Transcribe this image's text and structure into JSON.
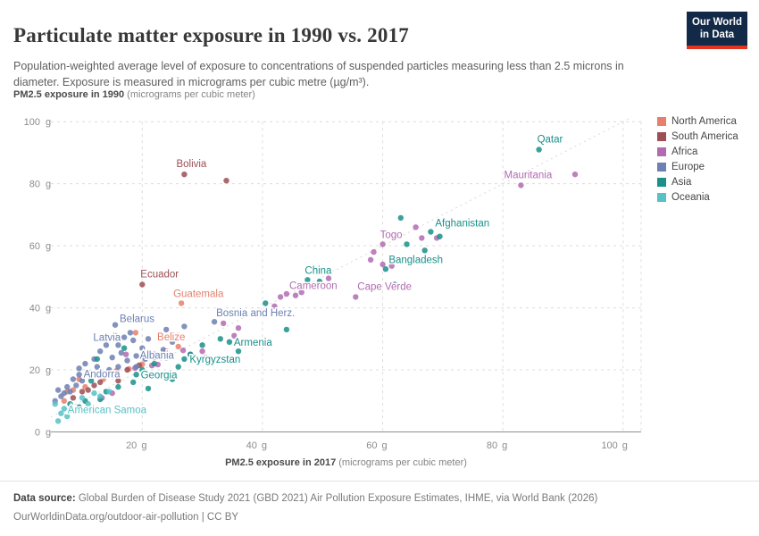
{
  "header": {
    "title": "Particulate matter exposure in 1990 vs. 2017",
    "subtitle": "Population-weighted average level of exposure to concentrations of suspended particles measuring less than 2.5 microns in diameter. Exposure is measured in micrograms per cubic metre (µg/m³).",
    "logo_line1": "Our World",
    "logo_line2": "in Data"
  },
  "axes": {
    "y_title_bold": "PM2.5 exposure in 1990",
    "y_title_rest": " (micrograms per cubic meter)",
    "x_title_bold": "PM2.5 exposure in 2017",
    "x_title_rest": " (micrograms per cubic meter)"
  },
  "legend": [
    {
      "label": "North America",
      "color": "#e6806d"
    },
    {
      "label": "South America",
      "color": "#9c4f55"
    },
    {
      "label": "Africa",
      "color": "#b16bb1"
    },
    {
      "label": "Europe",
      "color": "#6d80b2"
    },
    {
      "label": "Asia",
      "color": "#19908a"
    },
    {
      "label": "Oceania",
      "color": "#57c1c5"
    }
  ],
  "footer": {
    "source_bold": "Data source:",
    "source_rest": " Global Burden of Disease Study 2021 (GBD 2021) Air Pollution Exposure Estimates, IHME, via World Bank (2026)",
    "line2": "OurWorldinData.org/outdoor-air-pollution | CC BY"
  },
  "chart_data": {
    "type": "scatter",
    "title": "Particulate matter exposure in 1990 vs. 2017",
    "xlabel": "PM2.5 exposure in 2017 (micrograms per cubic meter)",
    "ylabel": "PM2.5 exposure in 1990 (micrograms per cubic meter)",
    "xlim": [
      4.8,
      103
    ],
    "ylim": [
      0,
      101.5
    ],
    "x_ticks": [
      20,
      40,
      60,
      80,
      100
    ],
    "y_ticks": [
      0,
      20,
      40,
      60,
      80,
      100
    ],
    "tick_unit": "g",
    "grid": true,
    "identity_line": true,
    "legend_position": "right",
    "series": [
      {
        "name": "North America",
        "color": "#e6806d",
        "points": [
          [
            26.5,
            41.5
          ],
          [
            26,
            27.5
          ],
          [
            18.9,
            32
          ],
          [
            15.7,
            19.7
          ],
          [
            17.8,
            20.3
          ],
          [
            20,
            21.8
          ],
          [
            22,
            24
          ],
          [
            24,
            26
          ],
          [
            12,
            18
          ],
          [
            9.5,
            17
          ],
          [
            8.5,
            13.5
          ],
          [
            7.5,
            13
          ],
          [
            7,
            10
          ],
          [
            10.5,
            14.5
          ],
          [
            13.5,
            17
          ],
          [
            30.5,
            24
          ]
        ],
        "labels": [
          {
            "text": "Guatemala",
            "x": 26.5,
            "y": 41.5,
            "dx": -9,
            "dy": -7,
            "anchor": "start"
          },
          {
            "text": "Belize",
            "x": 26,
            "y": 27.5,
            "dx": -8,
            "dy": -7,
            "anchor": "middle"
          }
        ]
      },
      {
        "name": "South America",
        "color": "#9c4f55",
        "points": [
          [
            27,
            83
          ],
          [
            34,
            81
          ],
          [
            20,
            47.5
          ],
          [
            8.5,
            11
          ],
          [
            10,
            13
          ],
          [
            11,
            13.5
          ],
          [
            13,
            16
          ],
          [
            15,
            18
          ],
          [
            17.5,
            20
          ],
          [
            19.5,
            21.5
          ],
          [
            12,
            15
          ],
          [
            16,
            16.5
          ]
        ],
        "labels": [
          {
            "text": "Bolivia",
            "x": 27,
            "y": 83,
            "dx": 8,
            "dy": -8,
            "anchor": "middle"
          },
          {
            "text": "Ecuador",
            "x": 20,
            "y": 47.5,
            "dx": -2,
            "dy": -8,
            "anchor": "start"
          }
        ]
      },
      {
        "name": "Africa",
        "color": "#b16bb1",
        "points": [
          [
            83,
            79.5
          ],
          [
            92,
            83
          ],
          [
            60,
            60.5
          ],
          [
            65.5,
            66
          ],
          [
            66.5,
            62.5
          ],
          [
            69,
            62.5
          ],
          [
            58.5,
            58
          ],
          [
            58,
            55.5
          ],
          [
            60,
            54
          ],
          [
            61.5,
            53.5
          ],
          [
            45.5,
            44
          ],
          [
            43,
            43.5
          ],
          [
            44,
            44.5
          ],
          [
            46.5,
            45
          ],
          [
            42,
            40.5
          ],
          [
            51,
            49.5
          ],
          [
            55.5,
            43.5
          ],
          [
            35.3,
            31
          ],
          [
            36,
            33.5
          ],
          [
            33.5,
            35
          ],
          [
            30,
            26
          ],
          [
            28,
            25
          ],
          [
            26.8,
            26.3
          ],
          [
            22.6,
            21.7
          ],
          [
            21.6,
            21.4
          ],
          [
            18.8,
            20.6
          ],
          [
            17.3,
            25
          ],
          [
            13.3,
            11
          ],
          [
            15,
            12.5
          ]
        ],
        "labels": [
          {
            "text": "Mauritania",
            "x": 83,
            "y": 79.5,
            "dx": 8,
            "dy": -8,
            "anchor": "middle"
          },
          {
            "text": "Togo",
            "x": 60,
            "y": 60.5,
            "dx": -3,
            "dy": -7,
            "anchor": "start"
          },
          {
            "text": "Cameroon",
            "x": 45.5,
            "y": 44,
            "dx": -7,
            "dy": -7,
            "anchor": "start"
          },
          {
            "text": "Cape Verde",
            "x": 55.5,
            "y": 43.5,
            "dx": 2,
            "dy": -8,
            "anchor": "start"
          }
        ]
      },
      {
        "name": "Europe",
        "color": "#6d80b2",
        "points": [
          [
            15.5,
            34.5
          ],
          [
            17,
            30.5
          ],
          [
            19,
            24.5
          ],
          [
            9.5,
            18.5
          ],
          [
            32,
            35.5
          ],
          [
            27,
            34
          ],
          [
            23,
            31.5
          ],
          [
            18,
            32
          ],
          [
            16,
            28
          ],
          [
            14,
            28
          ],
          [
            13,
            26
          ],
          [
            12,
            23.5
          ],
          [
            10.5,
            22
          ],
          [
            12.5,
            21
          ],
          [
            14.5,
            20
          ],
          [
            11,
            19
          ],
          [
            10,
            16.5
          ],
          [
            9,
            15
          ],
          [
            8,
            13
          ],
          [
            6.5,
            11.5
          ],
          [
            6,
            13.5
          ],
          [
            7.5,
            14.5
          ],
          [
            13,
            18
          ],
          [
            16,
            21
          ],
          [
            17.5,
            23
          ],
          [
            19,
            21
          ],
          [
            20.5,
            23.5
          ],
          [
            22,
            25
          ],
          [
            23.5,
            26.5
          ],
          [
            25,
            29
          ],
          [
            21,
            30
          ],
          [
            20,
            27
          ],
          [
            18.5,
            29.5
          ],
          [
            24,
            33
          ],
          [
            26,
            31
          ],
          [
            9.5,
            20.5
          ],
          [
            8.5,
            17
          ],
          [
            5.5,
            10
          ],
          [
            7,
            12.5
          ],
          [
            15,
            24
          ],
          [
            16.5,
            25.5
          ]
        ],
        "labels": [
          {
            "text": "Belarus",
            "x": 15.5,
            "y": 34.5,
            "dx": 5,
            "dy": -3,
            "anchor": "start"
          },
          {
            "text": "Latvia",
            "x": 17,
            "y": 30.5,
            "dx": -4,
            "dy": 4,
            "anchor": "end"
          },
          {
            "text": "Albania",
            "x": 19,
            "y": 24.5,
            "dx": 4,
            "dy": 3,
            "anchor": "start"
          },
          {
            "text": "Andorra",
            "x": 9.5,
            "y": 18.5,
            "dx": 5,
            "dy": 3,
            "anchor": "start"
          },
          {
            "text": "Bosnia and Herz.",
            "x": 32,
            "y": 35.5,
            "dx": 2,
            "dy": -6,
            "anchor": "start"
          }
        ]
      },
      {
        "name": "Asia",
        "color": "#19908a",
        "points": [
          [
            86,
            91
          ],
          [
            68,
            64.5
          ],
          [
            67,
            58.5
          ],
          [
            47.5,
            49
          ],
          [
            34.5,
            29
          ],
          [
            27,
            23.5
          ],
          [
            19,
            18.5
          ],
          [
            63,
            69
          ],
          [
            69.5,
            63
          ],
          [
            64,
            60.5
          ],
          [
            60.5,
            52.5
          ],
          [
            62,
            47.5
          ],
          [
            49.5,
            48.5
          ],
          [
            40.5,
            41.5
          ],
          [
            44,
            33
          ],
          [
            36,
            26
          ],
          [
            33,
            30
          ],
          [
            30,
            28
          ],
          [
            28,
            25
          ],
          [
            26,
            21
          ],
          [
            24,
            24
          ],
          [
            22,
            22
          ],
          [
            20,
            20
          ],
          [
            18.5,
            16
          ],
          [
            16,
            14.5
          ],
          [
            14,
            13
          ],
          [
            13,
            10.5
          ],
          [
            11.5,
            16.5
          ],
          [
            12.5,
            23.5
          ],
          [
            15.5,
            31
          ],
          [
            17,
            27
          ],
          [
            10.5,
            10
          ],
          [
            9.5,
            8
          ],
          [
            8,
            9
          ],
          [
            25,
            17
          ],
          [
            21,
            14
          ]
        ],
        "labels": [
          {
            "text": "Qatar",
            "x": 86,
            "y": 91,
            "dx": -2,
            "dy": -8,
            "anchor": "start"
          },
          {
            "text": "Afghanistan",
            "x": 68,
            "y": 64.5,
            "dx": 5,
            "dy": -6,
            "anchor": "start"
          },
          {
            "text": "Bangladesh",
            "x": 67,
            "y": 58.5,
            "dx": -10,
            "dy": 14,
            "anchor": "middle"
          },
          {
            "text": "China",
            "x": 47.5,
            "y": 49,
            "dx": -3,
            "dy": -7,
            "anchor": "start"
          },
          {
            "text": "Armenia",
            "x": 34.5,
            "y": 29,
            "dx": 5,
            "dy": 4,
            "anchor": "start"
          },
          {
            "text": "Kyrgyzstan",
            "x": 27,
            "y": 23.5,
            "dx": 6,
            "dy": 4,
            "anchor": "start"
          },
          {
            "text": "Georgia",
            "x": 19,
            "y": 18.5,
            "dx": 5,
            "dy": 4,
            "anchor": "start"
          }
        ]
      },
      {
        "name": "Oceania",
        "color": "#57c1c5",
        "points": [
          [
            7,
            7.5
          ],
          [
            6,
            3.5
          ],
          [
            7.5,
            5
          ],
          [
            9,
            6.5
          ],
          [
            10,
            11
          ],
          [
            12,
            12.5
          ],
          [
            5.5,
            9
          ],
          [
            8,
            7
          ],
          [
            11,
            9
          ],
          [
            13,
            11.5
          ],
          [
            14.5,
            13
          ],
          [
            6.5,
            6
          ]
        ],
        "labels": [
          {
            "text": "American Samoa",
            "x": 7,
            "y": 7.5,
            "dx": 4,
            "dy": 5,
            "anchor": "start"
          }
        ]
      }
    ]
  }
}
